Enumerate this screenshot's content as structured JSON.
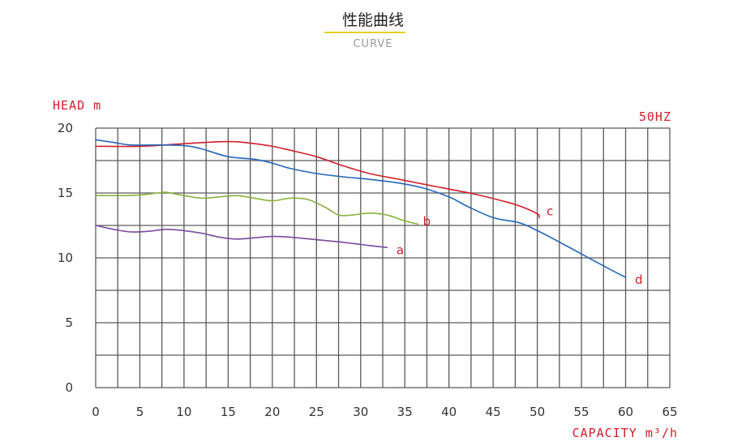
{
  "header": {
    "title": "性能曲线",
    "subtitle": "CURVE"
  },
  "chart_data": {
    "type": "line",
    "ylabel": "HEAD m",
    "xlabel": "CAPACITY m³/h",
    "annotation": "50HZ",
    "xlim": [
      0,
      65
    ],
    "ylim": [
      0,
      20
    ],
    "x_ticks": [
      0,
      5,
      10,
      15,
      20,
      25,
      30,
      35,
      40,
      45,
      50,
      55,
      60,
      65
    ],
    "y_ticks": [
      0,
      5,
      10,
      15,
      20
    ],
    "grid": true,
    "series": [
      {
        "name": "a",
        "color": "#7a4aa0",
        "points": [
          [
            0,
            12.5
          ],
          [
            2,
            12.2
          ],
          [
            4,
            12.0
          ],
          [
            6,
            12.05
          ],
          [
            8,
            12.2
          ],
          [
            10,
            12.1
          ],
          [
            12,
            11.9
          ],
          [
            14,
            11.6
          ],
          [
            16,
            11.45
          ],
          [
            18,
            11.55
          ],
          [
            20,
            11.65
          ],
          [
            22,
            11.6
          ],
          [
            25,
            11.4
          ],
          [
            28,
            11.2
          ],
          [
            31,
            10.95
          ],
          [
            33,
            10.8
          ]
        ]
      },
      {
        "name": "b",
        "color": "#8ab13e",
        "points": [
          [
            0,
            14.8
          ],
          [
            3,
            14.8
          ],
          [
            5,
            14.85
          ],
          [
            7,
            15.0
          ],
          [
            8,
            15.05
          ],
          [
            10,
            14.8
          ],
          [
            12,
            14.6
          ],
          [
            14,
            14.7
          ],
          [
            16,
            14.8
          ],
          [
            18,
            14.6
          ],
          [
            20,
            14.4
          ],
          [
            22,
            14.6
          ],
          [
            24,
            14.5
          ],
          [
            26,
            13.9
          ],
          [
            27.5,
            13.3
          ],
          [
            29,
            13.3
          ],
          [
            31,
            13.45
          ],
          [
            33,
            13.3
          ],
          [
            35,
            12.85
          ],
          [
            36.5,
            12.6
          ]
        ]
      },
      {
        "name": "c",
        "color": "#d0202a",
        "points": [
          [
            0,
            18.6
          ],
          [
            5,
            18.6
          ],
          [
            10,
            18.8
          ],
          [
            14,
            18.95
          ],
          [
            16,
            18.95
          ],
          [
            18,
            18.8
          ],
          [
            20,
            18.6
          ],
          [
            22,
            18.3
          ],
          [
            25,
            17.8
          ],
          [
            28,
            17.1
          ],
          [
            31,
            16.5
          ],
          [
            34,
            16.1
          ],
          [
            37,
            15.7
          ],
          [
            40,
            15.3
          ],
          [
            43,
            14.9
          ],
          [
            46,
            14.4
          ],
          [
            48,
            14.0
          ],
          [
            50,
            13.4
          ],
          [
            50.2,
            13.1
          ]
        ]
      },
      {
        "name": "d",
        "color": "#2767b9",
        "points": [
          [
            0,
            19.1
          ],
          [
            2,
            18.9
          ],
          [
            4,
            18.7
          ],
          [
            7,
            18.7
          ],
          [
            10,
            18.65
          ],
          [
            12,
            18.4
          ],
          [
            15,
            17.8
          ],
          [
            18,
            17.6
          ],
          [
            20,
            17.3
          ],
          [
            22,
            16.9
          ],
          [
            25,
            16.5
          ],
          [
            28,
            16.25
          ],
          [
            31,
            16.05
          ],
          [
            34,
            15.8
          ],
          [
            37,
            15.4
          ],
          [
            40,
            14.7
          ],
          [
            42,
            14.0
          ],
          [
            45,
            13.1
          ],
          [
            48,
            12.7
          ],
          [
            50,
            12.1
          ],
          [
            52,
            11.4
          ],
          [
            55,
            10.3
          ],
          [
            58,
            9.2
          ],
          [
            60,
            8.5
          ]
        ]
      }
    ],
    "end_labels": [
      {
        "series": "a",
        "x": 33.5,
        "y": 10.6
      },
      {
        "series": "b",
        "x": 36.5,
        "y": 12.8
      },
      {
        "series": "c",
        "x": 50.5,
        "y": 13.6
      },
      {
        "series": "d",
        "x": 60.5,
        "y": 8.3
      }
    ]
  }
}
